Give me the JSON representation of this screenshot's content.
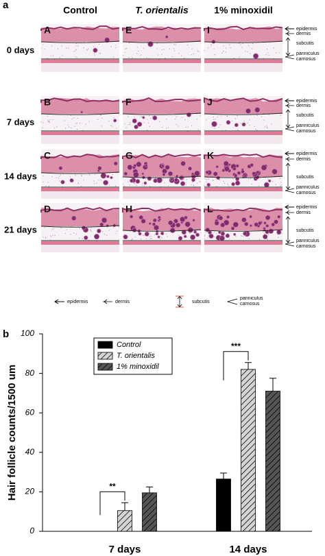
{
  "panel_a": {
    "label": "a",
    "columns": [
      "Control",
      "T. orientalis",
      "1% minoxidil"
    ],
    "rows": [
      "0 days",
      "7 days",
      "14 days",
      "21 days"
    ],
    "panels": [
      [
        "A",
        "E",
        "I"
      ],
      [
        "B",
        "F",
        "J"
      ],
      [
        "C",
        "G",
        "K"
      ],
      [
        "D",
        "H",
        "L"
      ]
    ],
    "layer_labels": [
      "epidermis",
      "dermis",
      "subcutis",
      "panniculus carnosus"
    ],
    "legend": [
      "epidermis",
      "dermis",
      "subcutis",
      "panniculus carnosus"
    ]
  },
  "chart_data": {
    "type": "bar",
    "panel_label": "b",
    "y_label": "Hair follicle counts/1500 um",
    "categories": [
      "7 days",
      "14 days"
    ],
    "series": [
      {
        "name": "Control",
        "color": "#000000",
        "pattern": "solid",
        "values": [
          null,
          26.5
        ],
        "errors": [
          null,
          3
        ]
      },
      {
        "name": "T. orientalis",
        "color": "#d4d4d4",
        "pattern": "hatch",
        "values": [
          10.5,
          82
        ],
        "errors": [
          4,
          3.5
        ]
      },
      {
        "name": "1% minoxidil",
        "color": "#555555",
        "pattern": "hatch",
        "values": [
          19.5,
          71
        ],
        "errors": [
          3,
          6.5
        ]
      }
    ],
    "annotations": [
      "**",
      "***"
    ],
    "ylim": [
      0,
      100
    ],
    "yticks": [
      0,
      20,
      40,
      60,
      80,
      100
    ]
  }
}
